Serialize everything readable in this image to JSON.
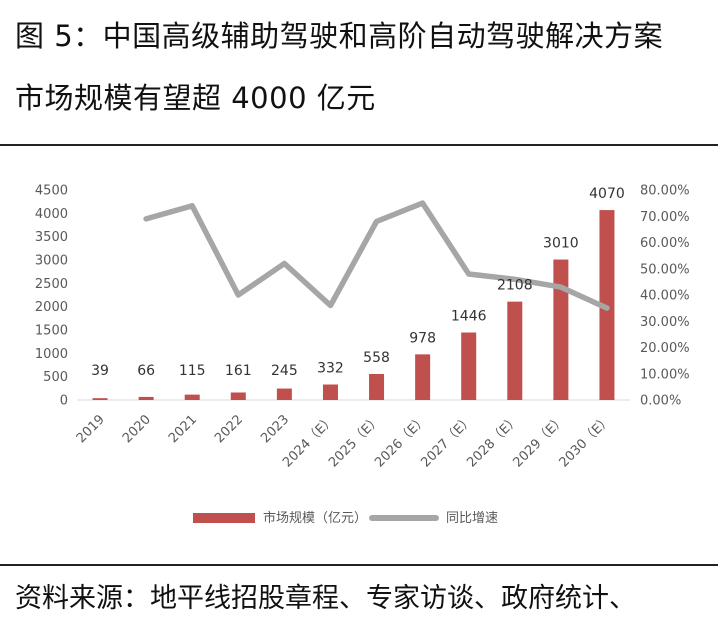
{
  "figure": {
    "title_line1": "图 5：中国高级辅助驾驶和高阶自动驾驶解决方案",
    "title_line2": "市场规模有望超 4000 亿元",
    "source": "资料来源：地平线招股章程、专家访谈、政府统计、"
  },
  "colors": {
    "bar": "#c0504d",
    "line": "#a6a6a6",
    "axis_text": "#595959"
  },
  "chart_data": {
    "type": "bar",
    "categories": [
      "2019",
      "2020",
      "2021",
      "2022",
      "2023",
      "2024（E）",
      "2025（E）",
      "2026（E）",
      "2027（E）",
      "2028（E）",
      "2029（E）",
      "2030（E）"
    ],
    "series": [
      {
        "name": "市场规模（亿元）",
        "type": "bar",
        "axis": "left",
        "values": [
          39,
          66,
          115,
          161,
          245,
          332,
          558,
          978,
          1446,
          2108,
          3010,
          4070
        ]
      },
      {
        "name": "同比增速",
        "type": "line",
        "axis": "right",
        "values": [
          null,
          0.69,
          0.74,
          0.4,
          0.52,
          0.36,
          0.68,
          0.75,
          0.48,
          0.46,
          0.43,
          0.35
        ]
      }
    ],
    "data_labels": [
      "39",
      "66",
      "115",
      "161",
      "245",
      "332",
      "558",
      "978",
      "1446",
      "2108",
      "3010",
      "4070"
    ],
    "y_left": {
      "min": 0,
      "max": 4500,
      "ticks": [
        "0",
        "500",
        "1000",
        "1500",
        "2000",
        "2500",
        "3000",
        "3500",
        "4000",
        "4500"
      ]
    },
    "y_right": {
      "min": 0,
      "max": 0.8,
      "ticks": [
        "0.00%",
        "10.00%",
        "20.00%",
        "30.00%",
        "40.00%",
        "50.00%",
        "60.00%",
        "70.00%",
        "80.00%"
      ]
    },
    "legend_position": "bottom",
    "grid": false
  }
}
